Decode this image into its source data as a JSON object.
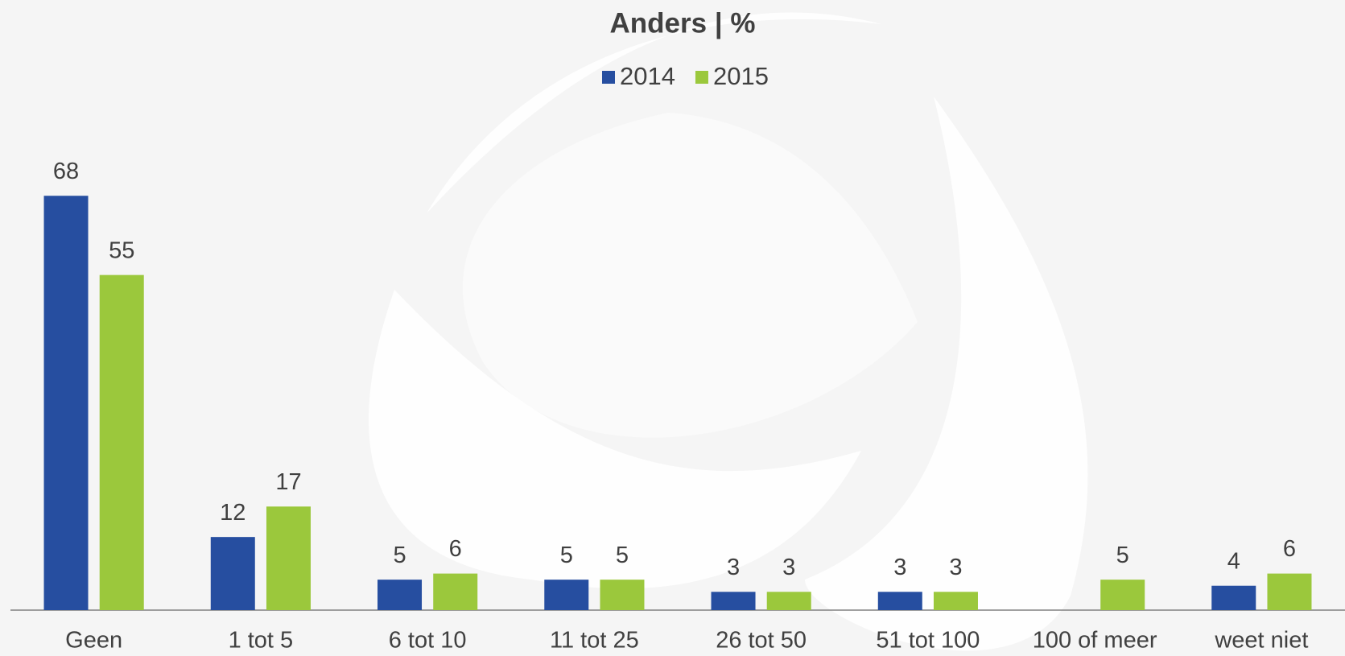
{
  "chart_data": {
    "type": "bar",
    "title": "Anders | %",
    "categories": [
      "Geen",
      "1 tot 5",
      "6 tot 10",
      "11 tot 25",
      "26 tot 50",
      "51 tot 100",
      "100 of meer",
      "weet niet"
    ],
    "series": [
      {
        "name": "2014",
        "color": "#264ea0",
        "values": [
          68,
          12,
          5,
          5,
          3,
          3,
          null,
          4
        ]
      },
      {
        "name": "2015",
        "color": "#9bc83c",
        "values": [
          55,
          17,
          6,
          5,
          3,
          3,
          5,
          6
        ]
      }
    ],
    "legend": "top"
  }
}
